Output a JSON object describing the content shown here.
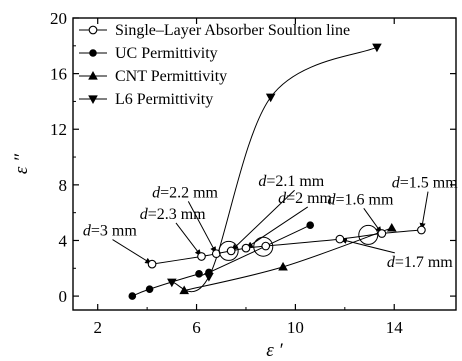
{
  "chart_data": {
    "type": "scatter",
    "xlabel": "ε ′",
    "ylabel": "ε ″",
    "xlim": [
      1,
      16.5
    ],
    "ylim": [
      -1,
      20
    ],
    "xticks": [
      2,
      6,
      10,
      14
    ],
    "xtick_labels": [
      "2",
      "6",
      "10",
      "14"
    ],
    "yticks": [
      0,
      4,
      8,
      12,
      16,
      20
    ],
    "ytick_labels": [
      "0",
      "4",
      "8",
      "12",
      "16",
      "20"
    ],
    "grid": false,
    "legend_position": "top-left",
    "series": [
      {
        "name": "Single–Layer Absorber Soultion line",
        "marker": "open-circle",
        "x": [
          4.2,
          6.2,
          6.8,
          7.4,
          8.0,
          8.8,
          11.8,
          13.5,
          15.1
        ],
        "y": [
          2.3,
          2.85,
          3.05,
          3.25,
          3.45,
          3.6,
          4.1,
          4.5,
          4.75
        ]
      },
      {
        "name": "UC Permittivity",
        "marker": "filled-circle",
        "x": [
          3.4,
          4.1,
          6.1,
          6.5,
          10.6
        ],
        "y": [
          0.0,
          0.5,
          1.6,
          1.7,
          5.1
        ]
      },
      {
        "name": "CNT Permittivity",
        "marker": "triangle-up",
        "x": [
          5.5,
          9.5,
          13.9
        ],
        "y": [
          0.4,
          2.1,
          4.9
        ]
      },
      {
        "name": "L6 Permittivity",
        "marker": "triangle-down",
        "x": [
          5.0,
          6.5,
          9.0,
          13.3
        ],
        "y": [
          1.0,
          1.4,
          14.3,
          17.9
        ]
      }
    ],
    "highlights": [
      {
        "x": 7.3,
        "y": 3.25
      },
      {
        "x": 8.7,
        "y": 3.55
      },
      {
        "x": 12.95,
        "y": 4.4
      }
    ],
    "annotations": [
      {
        "label": "d=3 mm",
        "x": 1.4,
        "y": 4.35,
        "ax": 4.2,
        "ay": 2.3
      },
      {
        "label": "d=2.3 mm",
        "x": 3.7,
        "y": 5.55,
        "ax": 6.2,
        "ay": 2.85
      },
      {
        "label": "d=2.2 mm",
        "x": 4.2,
        "y": 7.1,
        "ax": 6.8,
        "ay": 3.05
      },
      {
        "label": "d=2.1 mm",
        "x": 8.5,
        "y": 7.9,
        "ax": 7.4,
        "ay": 3.25
      },
      {
        "label": "d=2 mm",
        "x": 9.3,
        "y": 6.7,
        "ax": 8.0,
        "ay": 3.45
      },
      {
        "label": "d=1.6 mm",
        "x": 11.3,
        "y": 6.6,
        "ax": 13.5,
        "ay": 4.5
      },
      {
        "label": "d=1.5 mm",
        "x": 13.9,
        "y": 7.8,
        "ax": 15.1,
        "ay": 4.75
      },
      {
        "label": "d=1.7 mm",
        "x": 13.7,
        "y": 2.1,
        "ax": 11.8,
        "ay": 4.1
      }
    ],
    "label_parts": [
      [
        "d",
        "=3 mm"
      ],
      [
        "d",
        "=2.3 mm"
      ],
      [
        "d",
        "=2.2 mm"
      ],
      [
        "d",
        "=2.1 mm"
      ],
      [
        "d",
        "=2 mm"
      ],
      [
        "d",
        "=1.6 mm"
      ],
      [
        "d",
        "=1.5 mm"
      ],
      [
        "d",
        "=1.7 mm"
      ]
    ]
  }
}
